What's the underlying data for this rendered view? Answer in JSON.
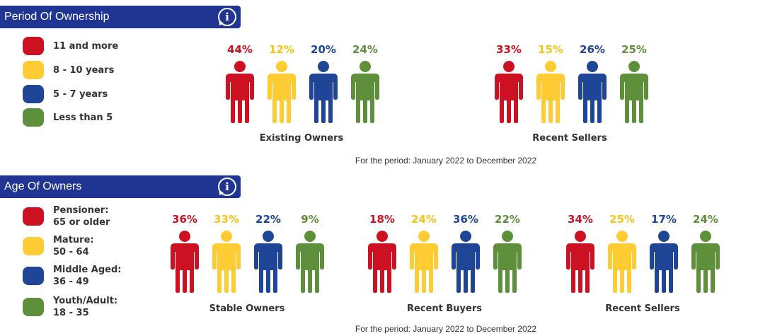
{
  "colors": {
    "header_bg": "#1f3591",
    "red": "#cc1122",
    "yellow": "#ffcc33",
    "blue": "#1f4597",
    "green": "#5e8f3a"
  },
  "ownership": {
    "header": {
      "title": "Period Of Ownership",
      "icon": "info-icon"
    },
    "legend": [
      {
        "color": "red",
        "lines": [
          "11 and more"
        ]
      },
      {
        "color": "yellow",
        "lines": [
          "8 - 10 years"
        ]
      },
      {
        "color": "blue",
        "lines": [
          "5 - 7 years"
        ]
      },
      {
        "color": "green",
        "lines": [
          "Less than 5"
        ]
      }
    ],
    "period_note": "For the period: January 2022 to December 2022"
  },
  "age": {
    "header": {
      "title": "Age Of Owners",
      "icon": "info-icon"
    },
    "legend": [
      {
        "color": "red",
        "lines": [
          "Pensioner:",
          "65 or older"
        ]
      },
      {
        "color": "yellow",
        "lines": [
          "Mature:",
          "50 - 64"
        ]
      },
      {
        "color": "blue",
        "lines": [
          "Middle Aged:",
          "36 - 49"
        ]
      },
      {
        "color": "green",
        "lines": [
          "Youth/Adult:",
          "18 - 35"
        ]
      }
    ],
    "period_note": "For the period: January 2022 to December 2022"
  },
  "chart_data": [
    {
      "type": "bar",
      "title": "Period Of Ownership",
      "categories": [
        "11 and more",
        "8 - 10 years",
        "5 - 7 years",
        "Less than 5"
      ],
      "unit": "%",
      "series": [
        {
          "name": "Existing Owners",
          "values": [
            44,
            12,
            20,
            24
          ]
        },
        {
          "name": "Recent Sellers",
          "values": [
            33,
            15,
            26,
            25
          ]
        }
      ]
    },
    {
      "type": "bar",
      "title": "Age Of Owners",
      "categories": [
        "Pensioner: 65 or older",
        "Mature: 50 - 64",
        "Middle Aged: 36 - 49",
        "Youth/Adult: 18 - 35"
      ],
      "unit": "%",
      "series": [
        {
          "name": "Stable Owners",
          "values": [
            36,
            33,
            22,
            9
          ]
        },
        {
          "name": "Recent Buyers",
          "values": [
            18,
            24,
            36,
            22
          ]
        },
        {
          "name": "Recent Sellers",
          "values": [
            34,
            25,
            17,
            24
          ]
        }
      ]
    }
  ]
}
